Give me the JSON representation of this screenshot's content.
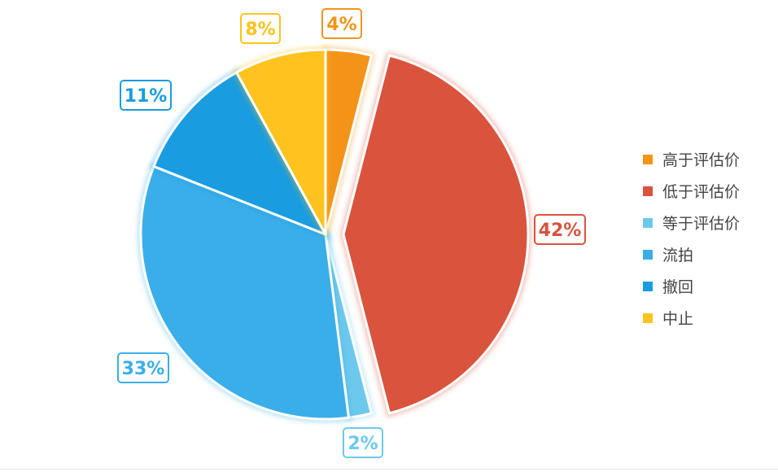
{
  "chart_data": {
    "type": "pie",
    "title": "",
    "series": [
      {
        "name": "高于评估价",
        "label": "4%",
        "value": 4,
        "color": "#F39419"
      },
      {
        "name": "低于评估价",
        "label": "42%",
        "value": 42,
        "color": "#D9533D"
      },
      {
        "name": "等于评估价",
        "label": "2%",
        "value": 2,
        "color": "#6DC9EC"
      },
      {
        "name": "流拍",
        "label": "33%",
        "value": 33,
        "color": "#3AAEE8"
      },
      {
        "name": "撤回",
        "label": "11%",
        "value": 11,
        "color": "#1A9CE0"
      },
      {
        "name": "中止",
        "label": "8%",
        "value": 8,
        "color": "#FFC21E"
      }
    ],
    "exploded": [
      "低于评估价"
    ],
    "legend_position": "right"
  }
}
